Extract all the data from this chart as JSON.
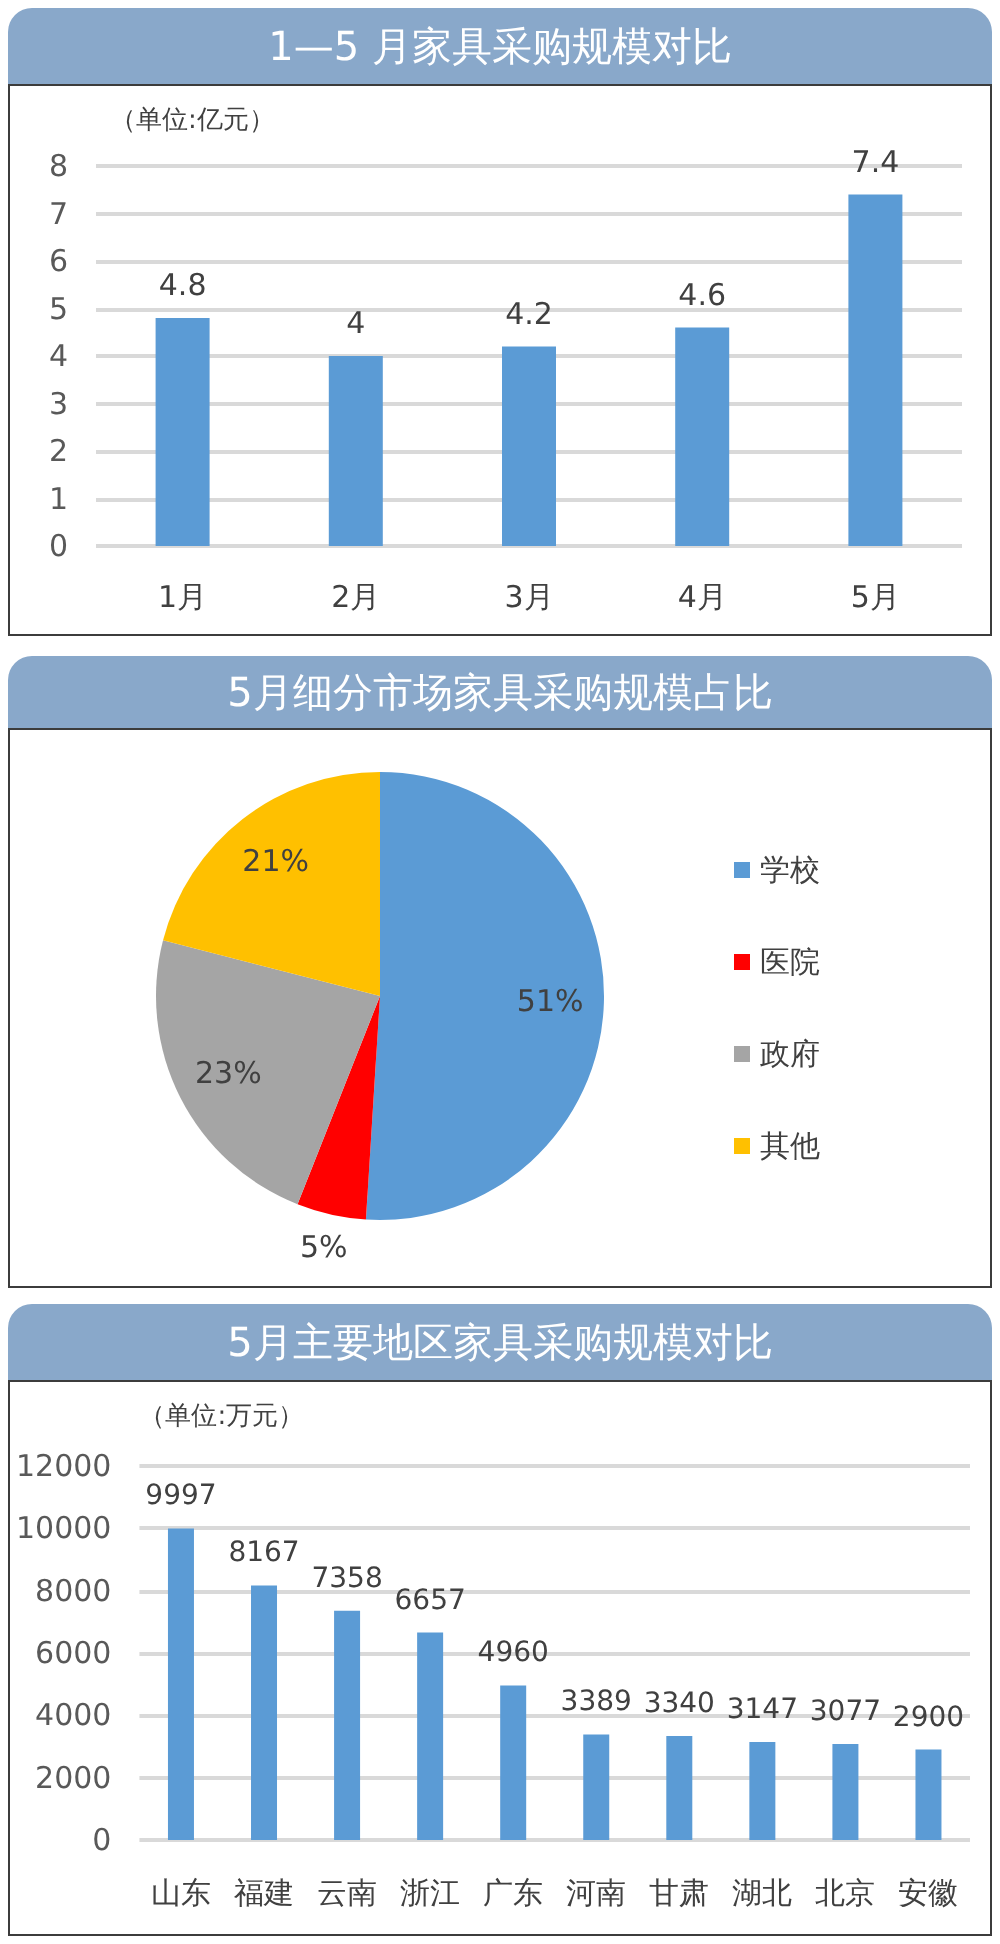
{
  "chart_data": [
    {
      "type": "bar",
      "title": "1—5 月家具采购规模对比",
      "ylabel": "（单位:亿元）",
      "categories": [
        "1月",
        "2月",
        "3月",
        "4月",
        "5月"
      ],
      "values": [
        4.8,
        4,
        4.2,
        4.6,
        7.4
      ],
      "color": "#5b9bd5",
      "ylim": [
        0,
        8
      ],
      "yticks": [
        0,
        1,
        2,
        3,
        4,
        5,
        6,
        7,
        8
      ],
      "grid": "y",
      "data_labels": true
    },
    {
      "type": "pie",
      "title": "5月细分市场家具采购规模占比",
      "categories": [
        "学校",
        "医院",
        "政府",
        "其他"
      ],
      "values": [
        51,
        5,
        23,
        21
      ],
      "colors": [
        "#5b9bd5",
        "#ff0000",
        "#a5a5a5",
        "#ffc000"
      ],
      "value_labels": [
        "51%",
        "5%",
        "23%",
        "21%"
      ],
      "legend": "right"
    },
    {
      "type": "bar",
      "title": "5月主要地区家具采购规模对比",
      "ylabel": "（单位:万元）",
      "categories": [
        "山东",
        "福建",
        "云南",
        "浙江",
        "广东",
        "河南",
        "甘肃",
        "湖北",
        "北京",
        "安徽"
      ],
      "values": [
        9997,
        8167,
        7358,
        6657,
        4960,
        3389,
        3340,
        3147,
        3077,
        2900
      ],
      "color": "#5b9bd5",
      "ylim": [
        0,
        12000
      ],
      "yticks": [
        0,
        2000,
        4000,
        6000,
        8000,
        10000,
        12000
      ],
      "grid": "y",
      "data_labels": true
    }
  ]
}
